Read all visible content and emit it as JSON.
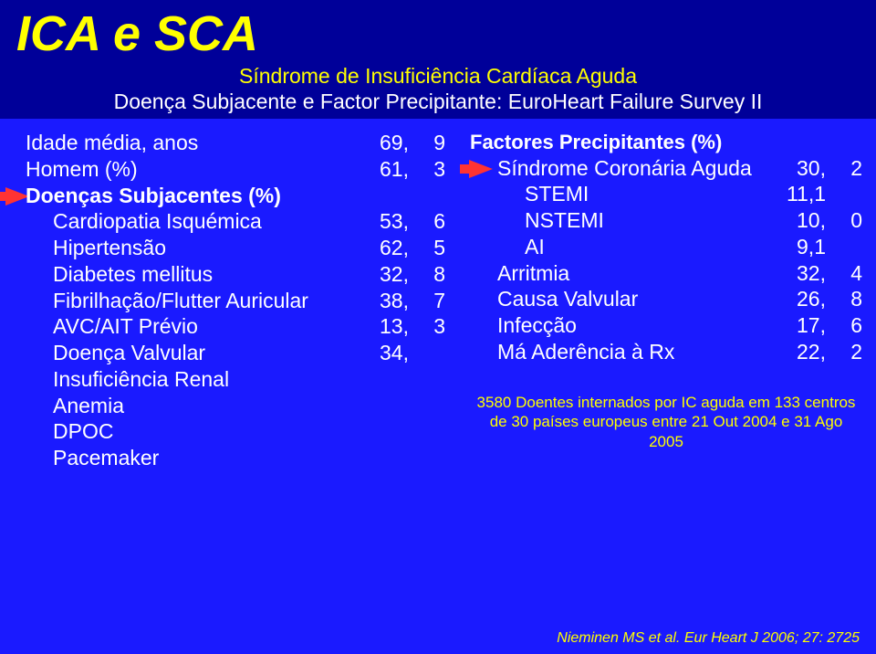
{
  "colors": {
    "slide_bg": "#1a1aff",
    "band_bg": "#000099",
    "title": "#ffff00",
    "text": "#ffffff",
    "accent": "#ffff00",
    "arrow": "#ff3333"
  },
  "title": "ICA e SCA",
  "subtitle": "Síndrome de Insuficiência Cardíaca Aguda",
  "subsubtitle": "Doença Subjacente e Factor Precipitante: EuroHeart Failure Survey II",
  "left": {
    "rows": [
      {
        "label": "Idade média, anos",
        "val": "69,",
        "val2": "9",
        "indent": 0
      },
      {
        "label": "Homem (%)",
        "val": "61,",
        "val2": "3",
        "indent": 0
      },
      {
        "label": "Doenças Subjacentes (%)",
        "val": "",
        "val2": "",
        "indent": 0,
        "header": true
      },
      {
        "label": "Cardiopatia Isquémica",
        "val": "53,",
        "val2": "6",
        "indent": 1
      },
      {
        "label": "Hipertensão",
        "val": "62,",
        "val2": "5",
        "indent": 1
      },
      {
        "label": "Diabetes mellitus",
        "val": "32,",
        "val2": "8",
        "indent": 1
      },
      {
        "label": "Fibrilhação/Flutter Auricular",
        "val": "38,",
        "val2": "7",
        "indent": 1
      },
      {
        "label": "AVC/AIT Prévio",
        "val": "13,",
        "val2": "3",
        "indent": 1
      },
      {
        "label": "Doença Valvular",
        "val": "34,",
        "val2": "",
        "indent": 1
      },
      {
        "label": "Insuficiência Renal",
        "val": "",
        "val2": "",
        "indent": 1
      },
      {
        "label": "Anemia",
        "val": "",
        "val2": "",
        "indent": 1
      },
      {
        "label": "DPOC",
        "val": "",
        "val2": "",
        "indent": 1
      },
      {
        "label": "Pacemaker",
        "val": "",
        "val2": "",
        "indent": 1
      }
    ]
  },
  "right": {
    "header": "Factores Precipitantes (%)",
    "rows": [
      {
        "label": "Síndrome Coronária Aguda",
        "val": "30,",
        "val2": "2",
        "indent": 1
      },
      {
        "label": "STEMI",
        "val": "11,1",
        "val2": "",
        "indent": 2
      },
      {
        "label": "NSTEMI",
        "val": "10,",
        "val2": "0",
        "indent": 2
      },
      {
        "label": "AI",
        "val": "9,1",
        "val2": "",
        "indent": 2
      },
      {
        "label": "Arritmia",
        "val": "32,",
        "val2": "4",
        "indent": 1
      },
      {
        "label": "Causa Valvular",
        "val": "26,",
        "val2": "8",
        "indent": 1
      },
      {
        "label": "Infecção",
        "val": "17,",
        "val2": "6",
        "indent": 1
      },
      {
        "label": "Má Aderência à Rx",
        "val": "22,",
        "val2": "2",
        "indent": 1
      }
    ]
  },
  "footnote": "3580 Doentes internados por IC aguda em 133 centros de 30 países europeus entre 21 Out 2004 e 31 Ago 2005",
  "citation": "Nieminen MS et al. Eur Heart J 2006; 27: 2725"
}
